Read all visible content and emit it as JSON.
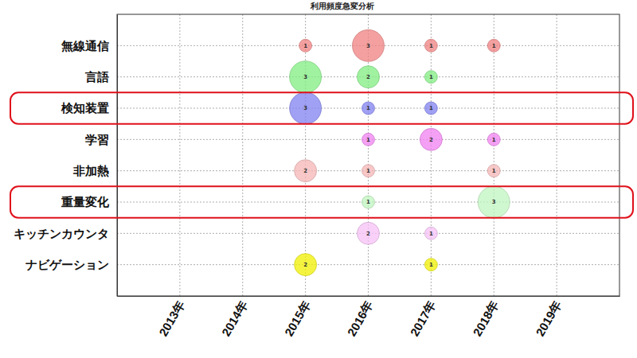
{
  "chart_data": {
    "type": "bubble",
    "title": "利用頻度急変分析",
    "categories": [
      "2013年",
      "2014年",
      "2015年",
      "2016年",
      "2017年",
      "2018年",
      "2019年"
    ],
    "series": [
      {
        "name": "無線通信",
        "color": "#f08080",
        "values": [
          null,
          null,
          1,
          3,
          1,
          1,
          null
        ]
      },
      {
        "name": "言語",
        "color": "#80ee80",
        "values": [
          null,
          null,
          3,
          2,
          1,
          null,
          null
        ]
      },
      {
        "name": "検知装置",
        "color": "#8080f0",
        "values": [
          null,
          null,
          3,
          1,
          1,
          null,
          null
        ]
      },
      {
        "name": "学習",
        "color": "#f080f0",
        "values": [
          null,
          null,
          null,
          1,
          2,
          1,
          null
        ]
      },
      {
        "name": "非加熱",
        "color": "#f5b5b5",
        "values": [
          null,
          null,
          2,
          1,
          null,
          1,
          null
        ]
      },
      {
        "name": "重量変化",
        "color": "#c0f5c0",
        "values": [
          null,
          null,
          null,
          1,
          null,
          3,
          null
        ]
      },
      {
        "name": "キッチンカウンタ",
        "color": "#f5c0f5",
        "values": [
          null,
          null,
          null,
          2,
          1,
          null,
          null
        ]
      },
      {
        "name": "ナビゲーション",
        "color": "#f0f000",
        "values": [
          null,
          null,
          2,
          null,
          1,
          null,
          null
        ]
      }
    ],
    "grid": true,
    "data_labels": true
  }
}
